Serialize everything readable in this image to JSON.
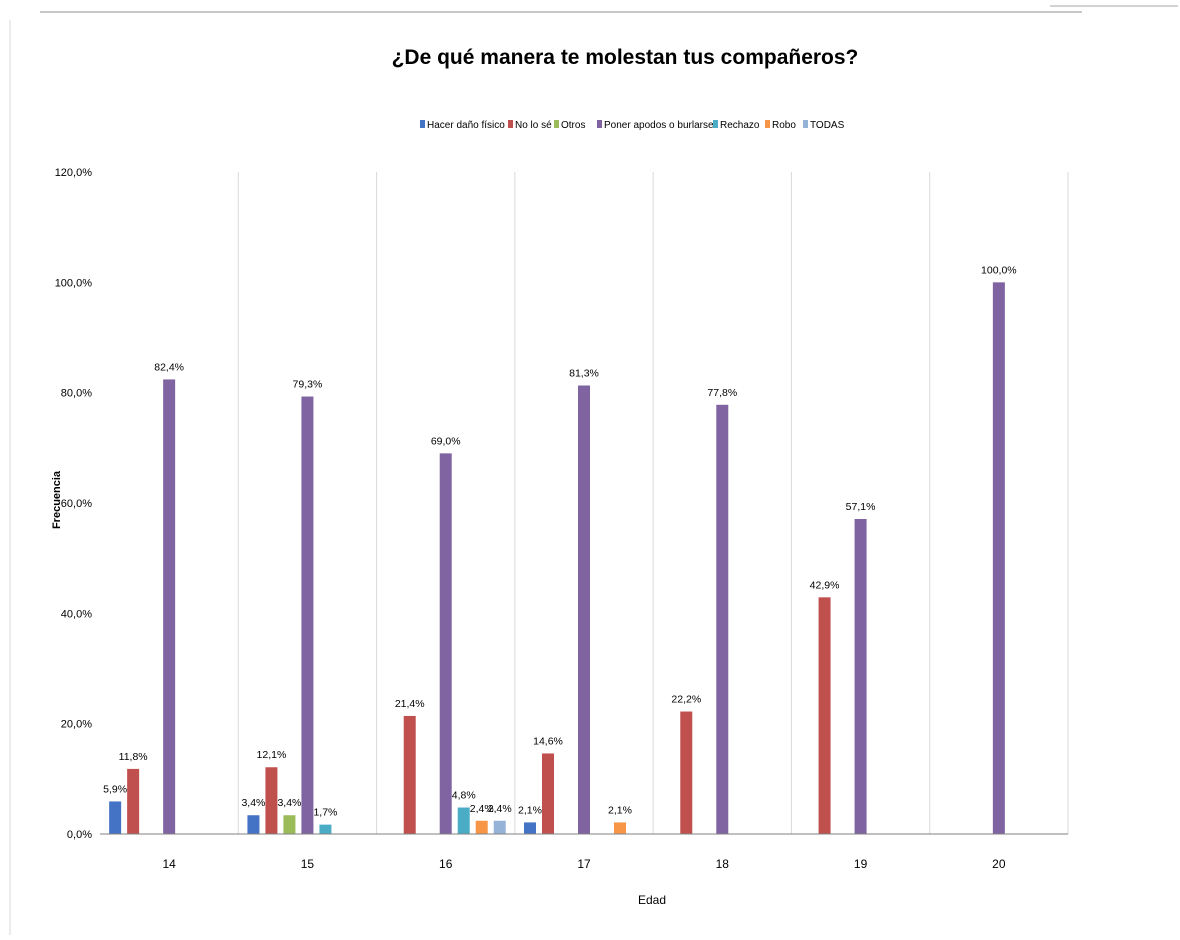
{
  "chart_data": {
    "type": "bar",
    "title": "¿De qué manera te molestan tus compañeros?",
    "xlabel": "Edad",
    "ylabel": "Frecuencia",
    "ylim": [
      0,
      120
    ],
    "yticks": [
      "0,0%",
      "20,0%",
      "40,0%",
      "60,0%",
      "80,0%",
      "100,0%",
      "120,0%"
    ],
    "categories": [
      "14",
      "15",
      "16",
      "17",
      "18",
      "19",
      "20"
    ],
    "grid": "vertical category separators",
    "legend_position": "top",
    "series": [
      {
        "name": "Hacer daño físico",
        "color": "#4472C4",
        "values": [
          5.9,
          3.4,
          null,
          2.1,
          null,
          null,
          null
        ],
        "labels": [
          "5,9%",
          "3,4%",
          "",
          "2,1%",
          "",
          "",
          ""
        ]
      },
      {
        "name": "No lo sé",
        "color": "#C0504D",
        "values": [
          11.8,
          12.1,
          21.4,
          14.6,
          22.2,
          42.9,
          null
        ],
        "labels": [
          "11,8%",
          "12,1%",
          "21,4%",
          "14,6%",
          "22,2%",
          "42,9%",
          ""
        ]
      },
      {
        "name": "Otros",
        "color": "#9BBB59",
        "values": [
          null,
          3.4,
          null,
          null,
          null,
          null,
          null
        ],
        "labels": [
          "",
          "3,4%",
          "",
          "",
          "",
          "",
          ""
        ]
      },
      {
        "name": "Poner apodos o burlarse",
        "color": "#8064A2",
        "values": [
          82.4,
          79.3,
          69.0,
          81.3,
          77.8,
          57.1,
          100.0
        ],
        "labels": [
          "82,4%",
          "79,3%",
          "69,0%",
          "81,3%",
          "77,8%",
          "57,1%",
          "100,0%"
        ]
      },
      {
        "name": "Rechazo",
        "color": "#4BACC6",
        "values": [
          null,
          1.7,
          4.8,
          null,
          null,
          null,
          null
        ],
        "labels": [
          "",
          "1,7%",
          "4,8%",
          "",
          "",
          "",
          ""
        ]
      },
      {
        "name": "Robo",
        "color": "#F79646",
        "values": [
          null,
          null,
          2.4,
          2.1,
          null,
          null,
          null
        ],
        "labels": [
          "",
          "",
          "2,4%",
          "2,1%",
          "",
          "",
          ""
        ]
      },
      {
        "name": "TODAS",
        "color": "#95B3D7",
        "values": [
          null,
          null,
          2.4,
          null,
          null,
          null,
          null
        ],
        "labels": [
          "",
          "",
          "2,4%",
          "",
          "",
          "",
          ""
        ]
      }
    ]
  }
}
